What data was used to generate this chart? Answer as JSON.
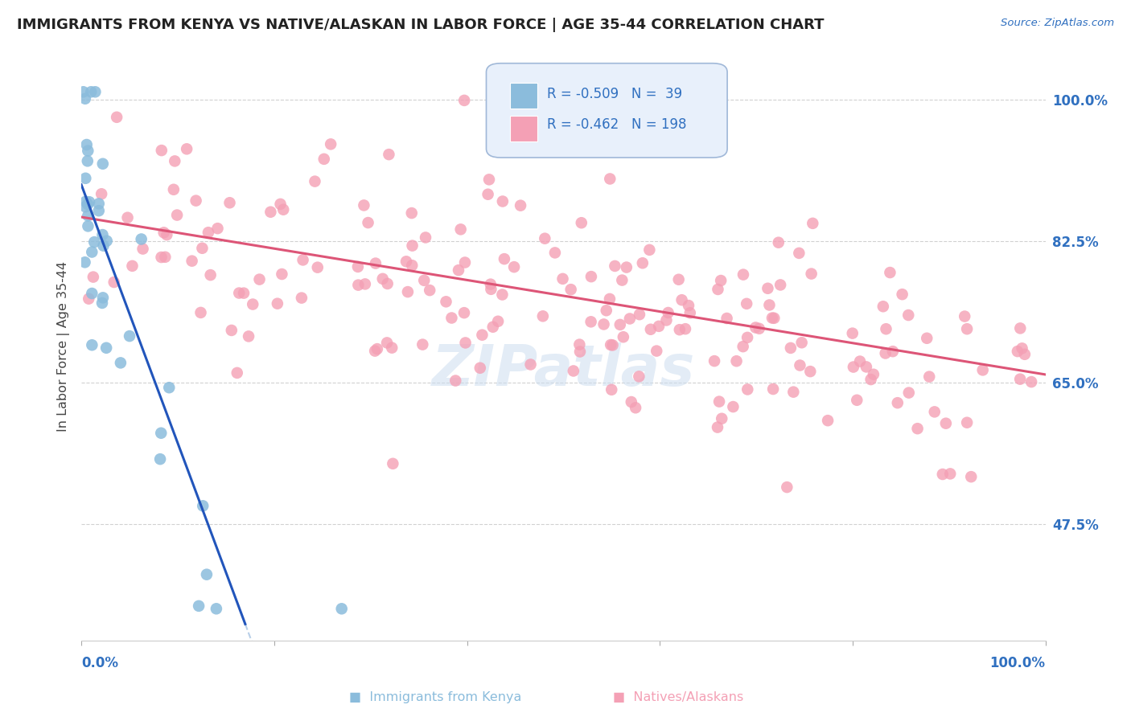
{
  "title": "IMMIGRANTS FROM KENYA VS NATIVE/ALASKAN IN LABOR FORCE | AGE 35-44 CORRELATION CHART",
  "source": "Source: ZipAtlas.com",
  "ylabel": "In Labor Force | Age 35-44",
  "ytick_labels": [
    "100.0%",
    "82.5%",
    "65.0%",
    "47.5%"
  ],
  "ytick_values": [
    1.0,
    0.825,
    0.65,
    0.475
  ],
  "xmin": 0.0,
  "xmax": 1.0,
  "ymin": 0.33,
  "ymax": 1.06,
  "kenya_R": -0.509,
  "kenya_N": 39,
  "native_R": -0.462,
  "native_N": 198,
  "kenya_color": "#8bbcdc",
  "native_color": "#f4a0b5",
  "kenya_line_color": "#2255bb",
  "native_line_color": "#dd5577",
  "dashed_line_color": "#b8cfe8",
  "watermark_color": "#ccddf0",
  "legend_box_color": "#e8f0fb",
  "legend_box_edge": "#a0b8d8",
  "title_color": "#222222",
  "axis_label_color": "#3070c0",
  "grid_color": "#cccccc",
  "background_color": "#ffffff",
  "kenya_seed": 42,
  "native_seed": 123,
  "kenya_line_x_end": 0.17,
  "native_line_intercept": 0.855,
  "native_line_slope": -0.195,
  "kenya_line_intercept": 0.895,
  "kenya_line_slope": -3.2
}
